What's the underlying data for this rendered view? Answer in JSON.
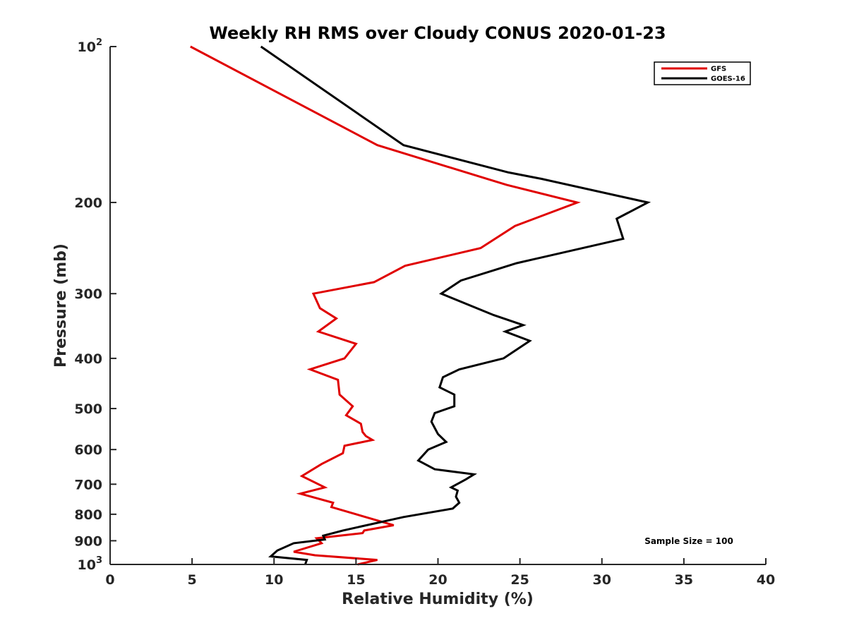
{
  "chart_data": {
    "type": "line",
    "title": "Weekly RH RMS over Cloudy CONUS 2020-01-23",
    "xlabel": "Relative Humidity (%)",
    "ylabel": "Pressure (mb)",
    "xlim": [
      0,
      40
    ],
    "ylim": [
      100,
      1000
    ],
    "yscale": "log",
    "y_reversed": true,
    "grid": false,
    "legend_position": "top-right",
    "x_ticks": [
      "0",
      "5",
      "10",
      "15",
      "20",
      "25",
      "30",
      "35",
      "40"
    ],
    "y_ticks": [
      {
        "value": 100,
        "base": "10",
        "exp": "2"
      },
      {
        "value": 200,
        "text": "200"
      },
      {
        "value": 300,
        "text": "300"
      },
      {
        "value": 400,
        "text": "400"
      },
      {
        "value": 500,
        "text": "500"
      },
      {
        "value": 600,
        "text": "600"
      },
      {
        "value": 700,
        "text": "700"
      },
      {
        "value": 800,
        "text": "800"
      },
      {
        "value": 900,
        "text": "900"
      },
      {
        "value": 1000,
        "base": "10",
        "exp": "3"
      }
    ],
    "annotation": "Sample Size = 100",
    "series": [
      {
        "name": "GFS",
        "color": "#e00000",
        "x": [
          4.9,
          16.3,
          24.2,
          28.5,
          24.7,
          22.6,
          18.0,
          16.1,
          12.4,
          12.8,
          13.8,
          12.7,
          15.0,
          14.3,
          12.2,
          13.9,
          14.0,
          14.8,
          14.4,
          15.3,
          15.4,
          15.6,
          16.0,
          14.3,
          14.2,
          12.9,
          11.7,
          13.1,
          11.6,
          13.6,
          13.5,
          17.3,
          15.5,
          15.4,
          12.6,
          12.9,
          11.2,
          12.5,
          16.3,
          15.1
        ],
        "y": [
          100,
          155,
          185,
          200,
          222,
          245,
          265,
          285,
          300,
          320,
          335,
          355,
          375,
          400,
          420,
          440,
          470,
          495,
          515,
          535,
          555,
          565,
          575,
          590,
          610,
          640,
          675,
          710,
          730,
          760,
          775,
          840,
          860,
          870,
          890,
          910,
          945,
          960,
          980,
          1000
        ]
      },
      {
        "name": "GOES-16",
        "color": "#000000",
        "x": [
          9.2,
          17.9,
          24.3,
          26.3,
          32.8,
          30.9,
          31.3,
          24.8,
          21.4,
          20.2,
          23.4,
          25.2,
          24.1,
          25.6,
          24.0,
          21.3,
          20.3,
          20.1,
          21.0,
          21.0,
          19.8,
          19.6,
          20.0,
          20.5,
          19.4,
          18.8,
          19.8,
          22.2,
          21.7,
          20.8,
          21.2,
          21.1,
          21.3,
          20.9,
          17.9,
          14.2,
          13.0,
          13.1,
          11.2,
          10.2,
          9.8,
          12.0,
          11.9
        ],
        "y": [
          100,
          155,
          175,
          180,
          200,
          215,
          235,
          262,
          283,
          300,
          330,
          345,
          355,
          370,
          400,
          420,
          435,
          455,
          470,
          495,
          510,
          530,
          560,
          580,
          600,
          630,
          655,
          670,
          685,
          710,
          720,
          740,
          760,
          780,
          810,
          860,
          880,
          895,
          910,
          940,
          965,
          980,
          1000
        ]
      }
    ]
  }
}
